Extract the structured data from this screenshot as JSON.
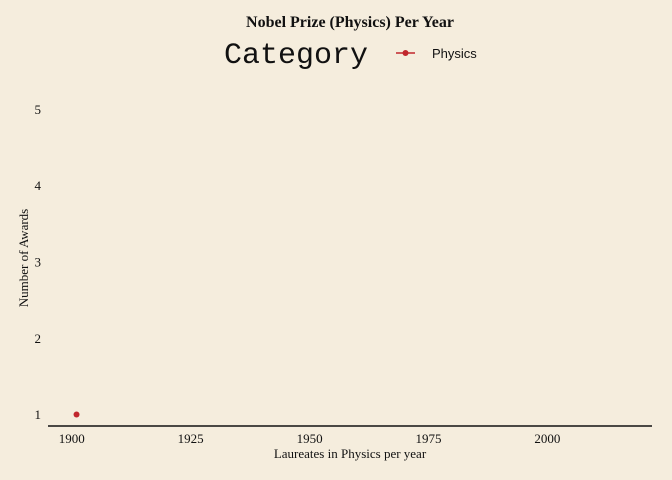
{
  "chart_data": {
    "type": "scatter",
    "title": "Nobel Prize (Physics) Per Year",
    "xlabel": "Laureates in Physics per year",
    "ylabel": "Number of Awards",
    "legend": {
      "title": "Category",
      "placement": "top",
      "entries": [
        "Physics"
      ]
    },
    "xlim": [
      1895,
      2022
    ],
    "ylim": [
      0.85,
      5.15
    ],
    "x_ticks": [
      1900,
      1925,
      1950,
      1975,
      2000
    ],
    "y_ticks": [
      1,
      2,
      3,
      4,
      5
    ],
    "grid": false,
    "series": [
      {
        "name": "Physics",
        "color": "#c1272d",
        "points": [
          {
            "x": 1901,
            "y": 1
          }
        ]
      }
    ]
  }
}
